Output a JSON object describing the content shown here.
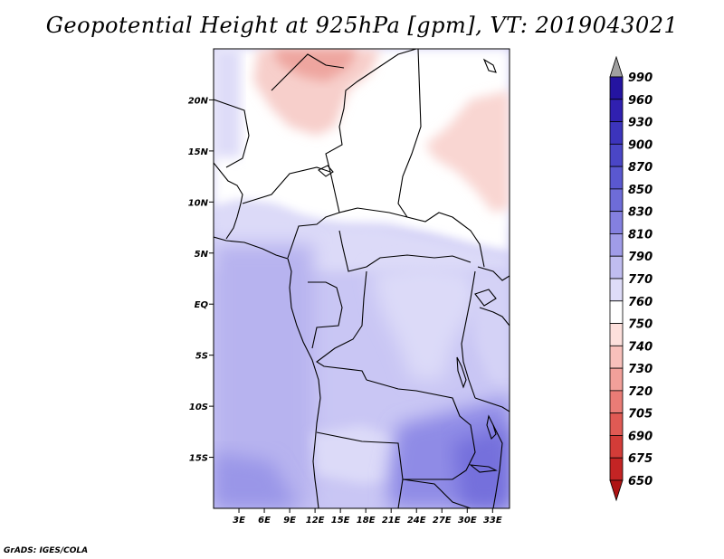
{
  "title": "Geopotential Height at 925hPa [gpm], VT: 2019043021",
  "credit": "GrADS: IGES/COLA",
  "map": {
    "lat_labels": [
      "20N",
      "15N",
      "10N",
      "5N",
      "EQ",
      "5S",
      "10S",
      "15S"
    ],
    "lon_labels": [
      "3E",
      "6E",
      "9E",
      "12E",
      "15E",
      "18E",
      "21E",
      "24E",
      "27E",
      "30E",
      "33E"
    ],
    "lat_values": [
      20,
      15,
      10,
      5,
      0,
      -5,
      -10,
      -15
    ],
    "lon_values": [
      3,
      6,
      9,
      12,
      15,
      18,
      21,
      24,
      27,
      30,
      33
    ],
    "lon_range": [
      0,
      35
    ],
    "lat_range": [
      -20,
      25
    ]
  },
  "colorbar": {
    "labels": [
      "990",
      "960",
      "930",
      "900",
      "870",
      "850",
      "830",
      "810",
      "790",
      "770",
      "760",
      "750",
      "740",
      "730",
      "720",
      "705",
      "690",
      "675",
      "650"
    ],
    "colors": [
      "#1a0090",
      "#2414a0",
      "#3020b0",
      "#3c34bc",
      "#4a46c6",
      "#5a58d0",
      "#6e6cd8",
      "#8480e0",
      "#a09ce8",
      "#c0bdf0",
      "#dedcf8",
      "#ffffff",
      "#fde0dc",
      "#f8c0bb",
      "#f2a09a",
      "#ea7c76",
      "#e05a54",
      "#d33c38",
      "#c42424",
      "#ae1414"
    ]
  }
}
